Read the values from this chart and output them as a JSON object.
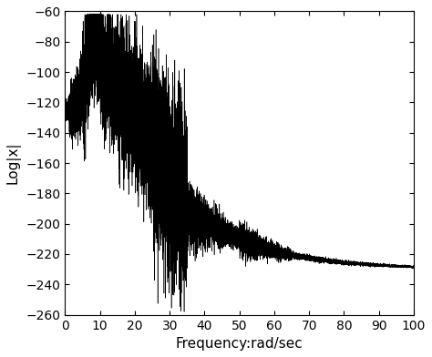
{
  "xlim": [
    0,
    100
  ],
  "ylim": [
    -260,
    -60
  ],
  "xlabel": "Frequency:rad/sec",
  "ylabel": "Log|x|",
  "xlabel_fontsize": 11,
  "ylabel_fontsize": 11,
  "tick_fontsize": 10,
  "xticks": [
    0,
    10,
    20,
    30,
    40,
    50,
    60,
    70,
    80,
    90,
    100
  ],
  "yticks": [
    -260,
    -240,
    -220,
    -200,
    -180,
    -160,
    -140,
    -120,
    -100,
    -80,
    -60
  ],
  "line_color": "#000000",
  "bg_color": "#ffffff",
  "figsize": [
    4.74,
    3.92
  ],
  "dpi": 100
}
